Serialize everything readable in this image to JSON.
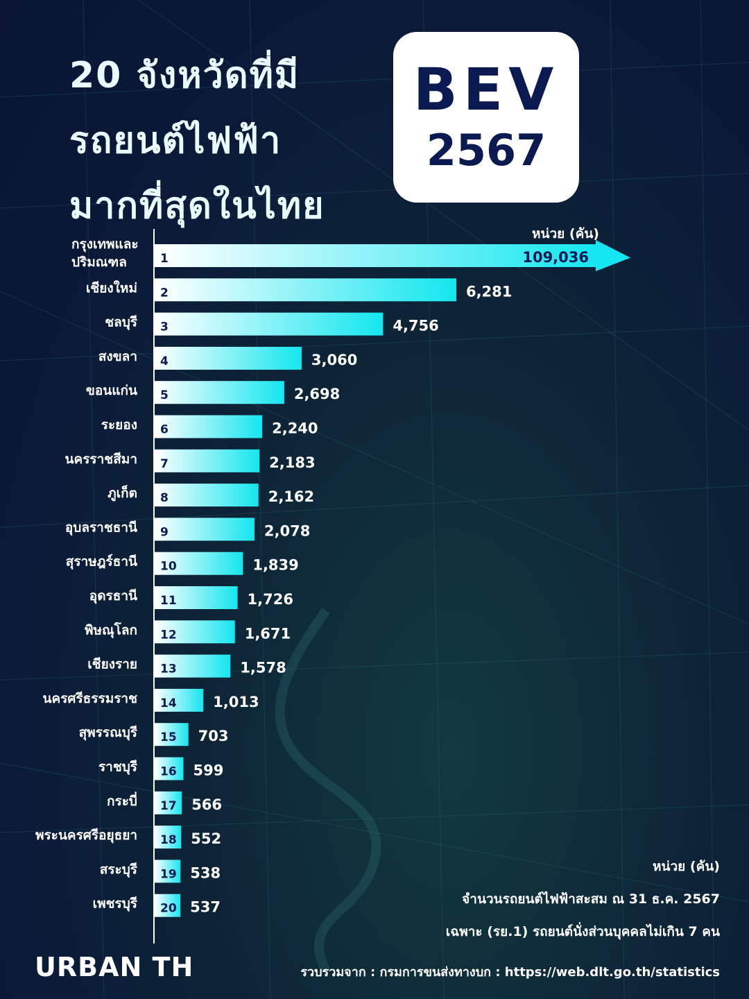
{
  "title": {
    "line1": "20 จังหวัดที่มี",
    "line2": "รถยนต์ไฟฟ้า",
    "line3": "มากที่สุดในไทย"
  },
  "badge": {
    "line1": "BEV",
    "line2": "2567"
  },
  "unit_top": "หน่วย (คัน)",
  "colors": {
    "bar_start": "#ffffff",
    "bar_end": "#14e6ef",
    "rank_text": "#0c1a52",
    "badge_text": "#0c1a52"
  },
  "chart_data": {
    "type": "bar",
    "orientation": "horizontal",
    "categories": [
      "กรุงเทพและ|ปริมณฑล",
      "เชียงใหม่",
      "ชลบุรี",
      "สงขลา",
      "ขอนแก่น",
      "ระยอง",
      "นครราชสีมา",
      "ภูเก็ต",
      "อุบลราชธานี",
      "สุราษฎร์ธานี",
      "อุดรธานี",
      "พิษณุโลก",
      "เชียงราย",
      "นครศรีธรรมราช",
      "สุพรรณบุรี",
      "ราชบุรี",
      "กระบี่",
      "พระนครศรีอยุธยา",
      "สระบุรี",
      "เพชรบุรี"
    ],
    "ranks": [
      "1",
      "2",
      "3",
      "4",
      "5",
      "6",
      "7",
      "8",
      "9",
      "10",
      "11",
      "12",
      "13",
      "14",
      "15",
      "16",
      "17",
      "18",
      "19",
      "20"
    ],
    "values": [
      109036,
      6281,
      4756,
      3060,
      2698,
      2240,
      2183,
      2162,
      2078,
      1839,
      1726,
      1671,
      1578,
      1013,
      703,
      599,
      566,
      552,
      538,
      537
    ],
    "value_labels": [
      "109,036",
      "6,281",
      "4,756",
      "3,060",
      "2,698",
      "2,240",
      "2,183",
      "2,162",
      "2,078",
      "1,839",
      "1,726",
      "1,671",
      "1,578",
      "1,013",
      "703",
      "599",
      "566",
      "552",
      "538",
      "537"
    ],
    "axis_break": "first bar truncated with arrow",
    "grid": false,
    "legend": "none"
  },
  "footer": {
    "unit": "หน่วย (คัน)",
    "note1": "จำนวนรถยนต์ไฟฟ้าสะสม  ณ 31 ธ.ค. 2567",
    "note2": "เฉพาะ (รย.1) รถยนต์นั่งส่วนบุคคลไม่เกิน 7 คน"
  },
  "brand": "URBAN TH",
  "source": "รวบรวมจาก : กรมการขนส่งทางบก : https://web.dlt.go.th/statistics"
}
